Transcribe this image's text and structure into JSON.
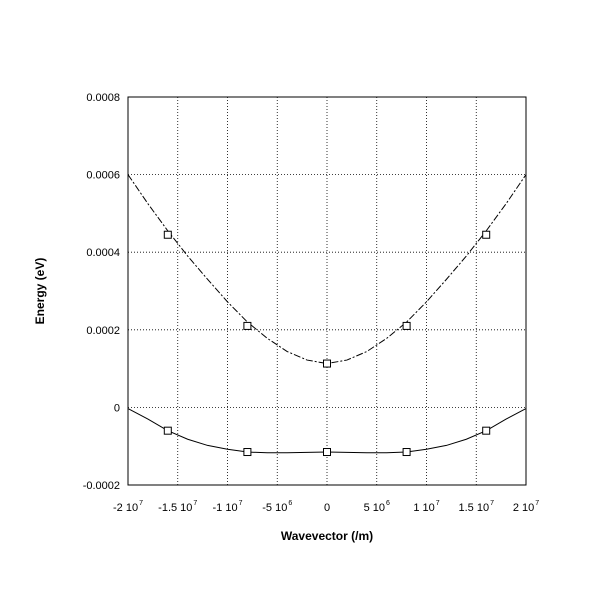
{
  "chart_data": {
    "type": "line",
    "xlabel": "Wavevector (/m)",
    "ylabel": "Energy (eV)",
    "xlim": [
      -20000000,
      20000000
    ],
    "ylim": [
      -0.0002,
      0.0008
    ],
    "grid": true,
    "legend": "none",
    "x_ticks": [
      {
        "value": -20000000,
        "mant": "-2 10",
        "exp": "7"
      },
      {
        "value": -15000000,
        "mant": "-1.5 10",
        "exp": "7"
      },
      {
        "value": -10000000,
        "mant": "-1 10",
        "exp": "7"
      },
      {
        "value": -5000000,
        "mant": "-5 10",
        "exp": "6"
      },
      {
        "value": 0,
        "mant": "0",
        "exp": ""
      },
      {
        "value": 5000000,
        "mant": "5 10",
        "exp": "6"
      },
      {
        "value": 10000000,
        "mant": "1 10",
        "exp": "7"
      },
      {
        "value": 15000000,
        "mant": "1.5 10",
        "exp": "7"
      },
      {
        "value": 20000000,
        "mant": "2 10",
        "exp": "7"
      }
    ],
    "y_ticks": [
      {
        "value": -0.0002,
        "label": "-0.0002"
      },
      {
        "value": 0,
        "label": "0"
      },
      {
        "value": 0.0002,
        "label": "0.0002"
      },
      {
        "value": 0.0004,
        "label": "0.0004"
      },
      {
        "value": 0.0006,
        "label": "0.0006"
      },
      {
        "value": 0.0008,
        "label": "0.0008"
      }
    ],
    "series": [
      {
        "line_style": "dash-dot",
        "color": "#000000",
        "curve": {
          "x": [
            -20000000,
            -18000000,
            -16000000,
            -14000000,
            -12000000,
            -10000000,
            -8000000,
            -6000000,
            -4000000,
            -2000000,
            0,
            2000000,
            4000000,
            6000000,
            8000000,
            10000000,
            12000000,
            14000000,
            16000000,
            18000000,
            20000000
          ],
          "y": [
            0.0006,
            0.000525,
            0.000455,
            0.00039,
            0.00033,
            0.000272,
            0.00022,
            0.000178,
            0.000144,
            0.000122,
            0.000113,
            0.000122,
            0.000144,
            0.000178,
            0.00022,
            0.000272,
            0.00033,
            0.00039,
            0.000455,
            0.000525,
            0.0006
          ]
        },
        "markers": {
          "x": [
            -16000000,
            -8000000,
            0,
            8000000,
            16000000
          ],
          "y": [
            0.000445,
            0.00021,
            0.000113,
            0.00021,
            0.000445
          ]
        }
      },
      {
        "line_style": "solid",
        "color": "#000000",
        "curve": {
          "x": [
            -20000000,
            -18000000,
            -16000000,
            -14000000,
            -12000000,
            -10000000,
            -8000000,
            -6000000,
            -4000000,
            -2000000,
            0,
            2000000,
            4000000,
            6000000,
            8000000,
            10000000,
            12000000,
            14000000,
            16000000,
            18000000,
            20000000
          ],
          "y": [
            -3e-06,
            -3e-05,
            -6e-05,
            -8.2e-05,
            -9.8e-05,
            -0.000108,
            -0.000115,
            -0.000117,
            -0.000117,
            -0.000116,
            -0.000115,
            -0.000116,
            -0.000117,
            -0.000117,
            -0.000115,
            -0.000108,
            -9.8e-05,
            -8.2e-05,
            -6e-05,
            -3e-05,
            -3e-06
          ]
        },
        "markers": {
          "x": [
            -16000000,
            -8000000,
            0,
            8000000,
            16000000
          ],
          "y": [
            -6e-05,
            -0.000115,
            -0.000115,
            -0.000115,
            -6e-05
          ]
        }
      }
    ]
  }
}
